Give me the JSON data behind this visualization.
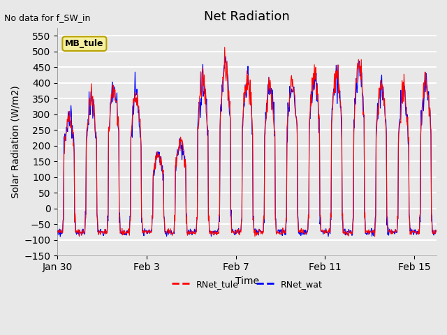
{
  "title": "Net Radiation",
  "no_data_text": "No data for f_SW_in",
  "mb_tule_label": "MB_tule",
  "ylabel": "Solar Radiation (W/m2)",
  "xlabel": "Time",
  "legend_labels": [
    "RNet_tule",
    "RNet_wat"
  ],
  "line_colors": [
    "red",
    "blue"
  ],
  "ylim": [
    -150,
    575
  ],
  "yticks": [
    -150,
    -100,
    -50,
    0,
    50,
    100,
    150,
    200,
    250,
    300,
    350,
    400,
    450,
    500,
    550
  ],
  "bg_color": "#e8e8e8",
  "plot_bg_color": "#e8e8e8",
  "grid_color": "white"
}
